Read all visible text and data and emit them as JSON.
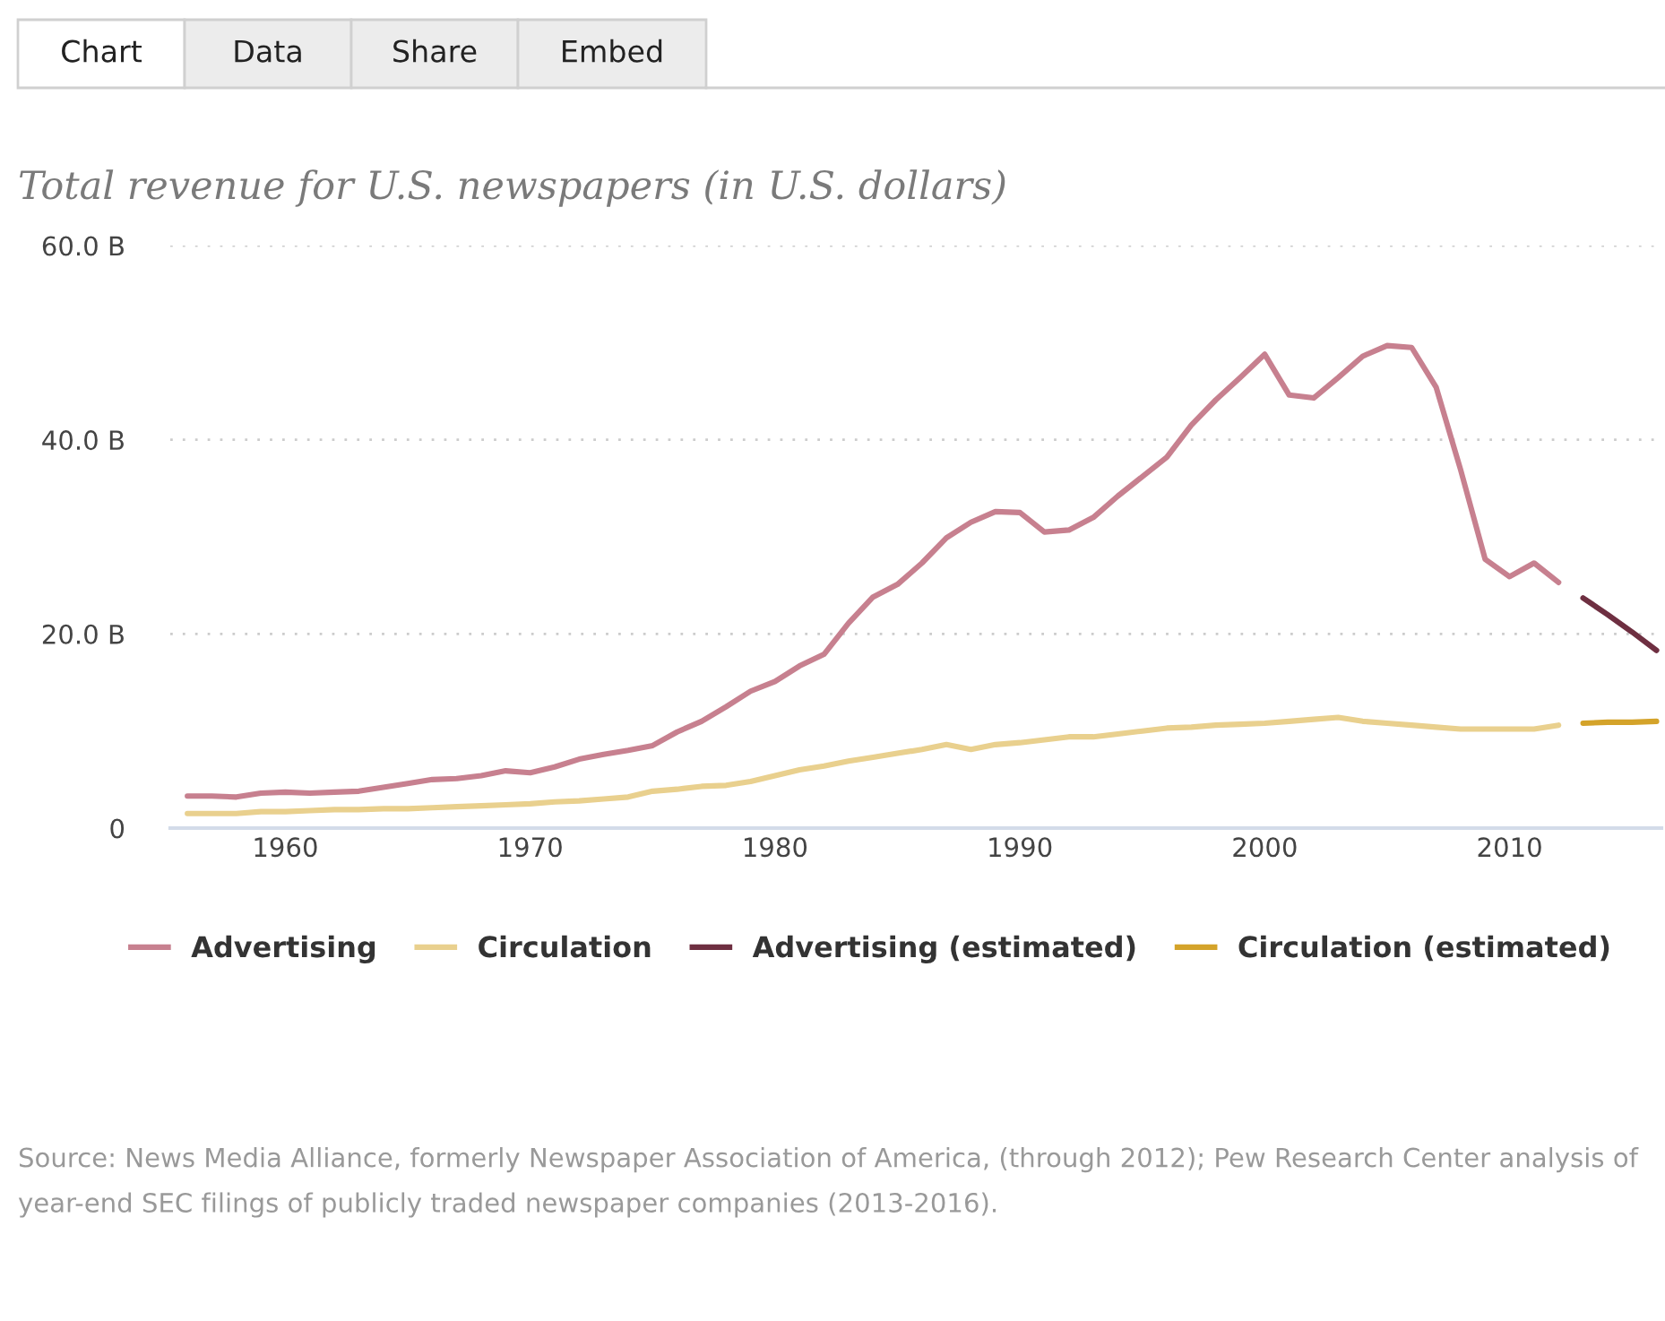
{
  "chart_data": {
    "type": "line",
    "title": "Total revenue for U.S. newspapers (in U.S. dollars)",
    "series": [
      {
        "name": "Advertising",
        "color": "#c7808f",
        "x": [
          1956,
          1957,
          1958,
          1959,
          1960,
          1961,
          1962,
          1963,
          1964,
          1965,
          1966,
          1967,
          1968,
          1969,
          1970,
          1971,
          1972,
          1973,
          1974,
          1975,
          1976,
          1977,
          1978,
          1979,
          1980,
          1981,
          1982,
          1983,
          1984,
          1985,
          1986,
          1987,
          1988,
          1989,
          1990,
          1991,
          1992,
          1993,
          1994,
          1995,
          1996,
          1997,
          1998,
          1999,
          2000,
          2001,
          2002,
          2003,
          2004,
          2005,
          2006,
          2007,
          2008,
          2009,
          2010,
          2011,
          2012
        ],
        "values": [
          3.3,
          3.3,
          3.2,
          3.6,
          3.7,
          3.6,
          3.7,
          3.8,
          4.2,
          4.6,
          5.0,
          5.1,
          5.4,
          5.9,
          5.7,
          6.3,
          7.1,
          7.6,
          8.0,
          8.5,
          9.9,
          11.0,
          12.5,
          14.1,
          15.1,
          16.7,
          17.9,
          21.1,
          23.8,
          25.1,
          27.3,
          29.9,
          31.5,
          32.6,
          32.5,
          30.5,
          30.7,
          32.0,
          34.2,
          36.2,
          38.2,
          41.5,
          44.1,
          46.4,
          48.8,
          44.6,
          44.3,
          46.4,
          48.6,
          49.7,
          49.5,
          45.4,
          36.9,
          27.7,
          25.9,
          27.3,
          25.3
        ]
      },
      {
        "name": "Circulation",
        "color": "#e9d08e",
        "x": [
          1956,
          1957,
          1958,
          1959,
          1960,
          1961,
          1962,
          1963,
          1964,
          1965,
          1966,
          1967,
          1968,
          1969,
          1970,
          1971,
          1972,
          1973,
          1974,
          1975,
          1976,
          1977,
          1978,
          1979,
          1980,
          1981,
          1982,
          1983,
          1984,
          1985,
          1986,
          1987,
          1988,
          1989,
          1990,
          1991,
          1992,
          1993,
          1994,
          1995,
          1996,
          1997,
          1998,
          1999,
          2000,
          2001,
          2002,
          2003,
          2004,
          2005,
          2006,
          2007,
          2008,
          2009,
          2010,
          2011,
          2012
        ],
        "values": [
          1.5,
          1.5,
          1.5,
          1.7,
          1.7,
          1.8,
          1.9,
          1.9,
          2.0,
          2.0,
          2.1,
          2.2,
          2.3,
          2.4,
          2.5,
          2.7,
          2.8,
          3.0,
          3.2,
          3.8,
          4.0,
          4.3,
          4.4,
          4.8,
          5.4,
          6.0,
          6.4,
          6.9,
          7.3,
          7.7,
          8.1,
          8.6,
          8.1,
          8.6,
          8.8,
          9.1,
          9.4,
          9.4,
          9.7,
          10.0,
          10.3,
          10.4,
          10.6,
          10.7,
          10.8,
          11.0,
          11.2,
          11.4,
          11.0,
          10.8,
          10.6,
          10.4,
          10.2,
          10.2,
          10.2,
          10.2,
          10.6
        ]
      },
      {
        "name": "Advertising (estimated)",
        "color": "#6e2f41",
        "x": [
          2013,
          2014,
          2015,
          2016
        ],
        "values": [
          23.7,
          22.0,
          20.2,
          18.3
        ]
      },
      {
        "name": "Circulation (estimated)",
        "color": "#d4a32a",
        "x": [
          2013,
          2014,
          2015,
          2016
        ],
        "values": [
          10.8,
          10.9,
          10.9,
          11.0
        ]
      }
    ],
    "xlim": [
      1955.3,
      2016.2
    ],
    "xticks": [
      1960,
      1970,
      1980,
      1990,
      2000,
      2010
    ],
    "ylim": [
      0,
      60
    ],
    "yticks": [
      {
        "value": 0,
        "label": "0"
      },
      {
        "value": 20,
        "label": "20.0 B"
      },
      {
        "value": 40,
        "label": "40.0 B"
      },
      {
        "value": 60,
        "label": "60.0 B"
      }
    ],
    "grid": "y",
    "legend": "bottom",
    "marker": "none",
    "line_style": "solid",
    "annotations": [
      "Chart",
      "Data",
      "Share",
      "Embed",
      "Source: News Media Alliance, formerly Newspaper Association of America, (through 2012); Pew Research Center analysis of year-end SEC filings of publicly traded newspaper companies (2013-2016)."
    ]
  }
}
